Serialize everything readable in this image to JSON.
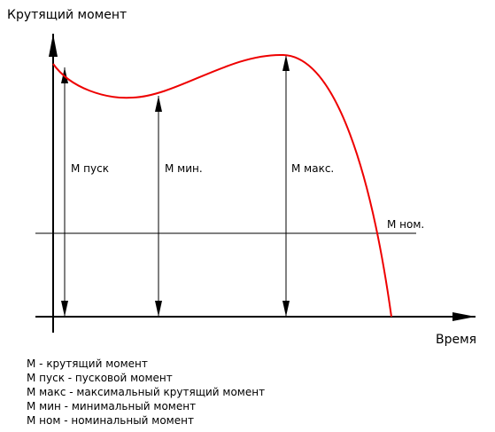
{
  "axes": {
    "y_label": "Крутящий момент",
    "x_label": "Время"
  },
  "points": {
    "start": "М пуск",
    "min": "М мин.",
    "max": "М макс.",
    "nominal": "М ном."
  },
  "legend": [
    "М - крутящий момент",
    "М пуск - пусковой момент",
    "М макс - максимальный крутящий момент",
    "М мин - минимальный момент",
    "М ном - номинальный момент"
  ]
}
